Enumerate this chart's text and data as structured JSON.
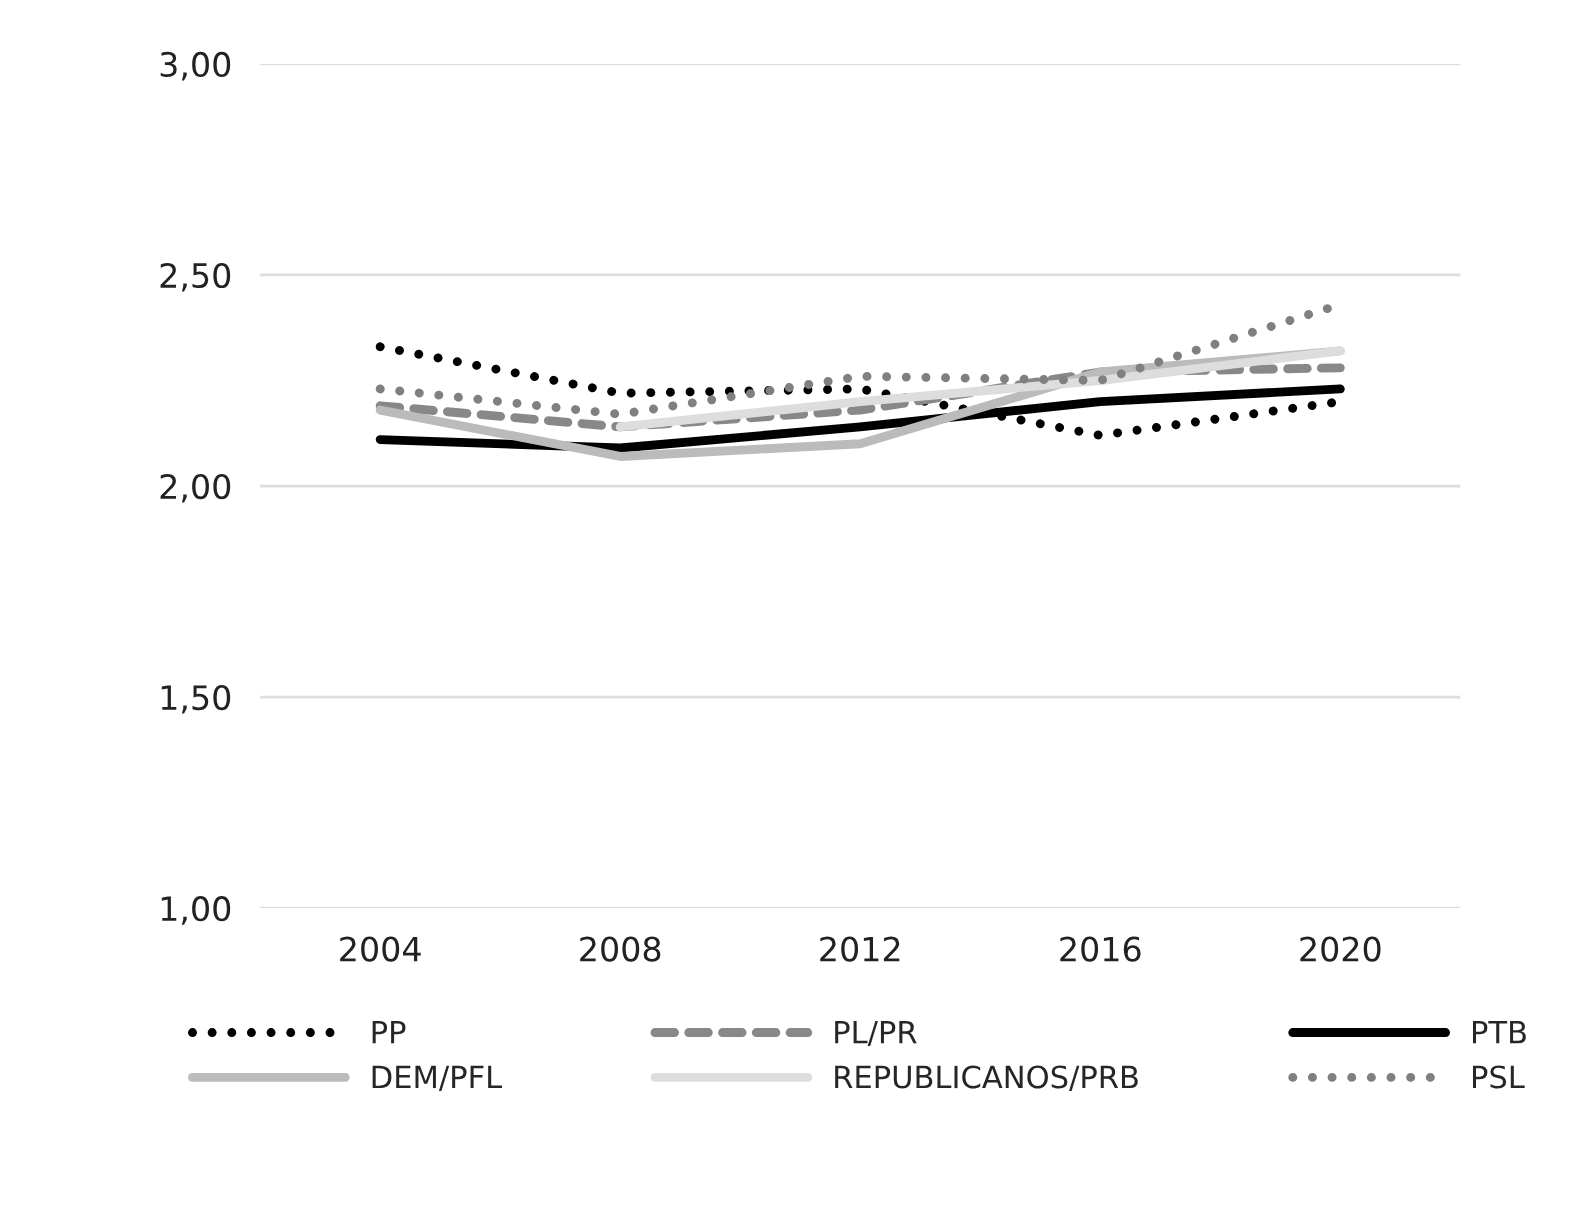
{
  "chart_data": {
    "type": "line",
    "categories": [
      "2004",
      "2008",
      "2012",
      "2016",
      "2020"
    ],
    "ylim": [
      1,
      3
    ],
    "yticks": [
      {
        "value": 1,
        "label": "1,00"
      },
      {
        "value": 1.5,
        "label": "1,50"
      },
      {
        "value": 2,
        "label": "2,00"
      },
      {
        "value": 2.5,
        "label": "2,50"
      },
      {
        "value": 3,
        "label": "3,00"
      }
    ],
    "grid": "y",
    "legend": "bottom",
    "marker": "none",
    "series": [
      {
        "name": "PP",
        "color": "#000000",
        "line_style": "dotted",
        "values": [
          2.33,
          2.22,
          2.23,
          2.12,
          2.2
        ]
      },
      {
        "name": "PL/PR",
        "color": "#888888",
        "line_style": "dashed",
        "values": [
          2.19,
          2.14,
          2.18,
          2.27,
          2.28
        ]
      },
      {
        "name": "PTB",
        "color": "#000000",
        "line_style": "solid",
        "values": [
          2.11,
          2.09,
          2.14,
          2.2,
          2.23
        ]
      },
      {
        "name": "DEM/PFL",
        "color": "#bbbbbb",
        "line_style": "solid",
        "values": [
          2.18,
          2.07,
          2.1,
          2.27,
          2.32
        ]
      },
      {
        "name": "REPUBLICANOS/PRB",
        "color": "#dddddd",
        "line_style": "solid",
        "values": [
          null,
          2.14,
          2.2,
          2.25,
          2.32
        ]
      },
      {
        "name": "PSL",
        "color": "#808080",
        "line_style": "dotted",
        "values": [
          2.23,
          2.17,
          2.26,
          2.25,
          2.43
        ]
      }
    ]
  }
}
